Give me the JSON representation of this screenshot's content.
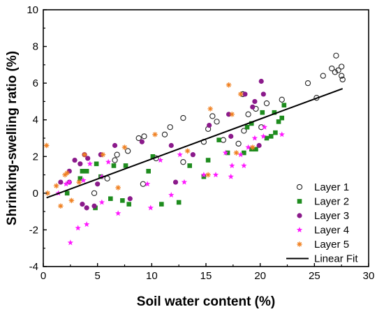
{
  "chart_data": {
    "type": "scatter",
    "xlabel": "Soil water content (%)",
    "ylabel": "Shrinking-swelling ratio (%)",
    "xlim": [
      0,
      30
    ],
    "ylim": [
      -4,
      10
    ],
    "xticks": [
      "0",
      "5",
      "10",
      "15",
      "20",
      "25",
      "30"
    ],
    "yticks": [
      "-4",
      "-2",
      "0",
      "2",
      "4",
      "6",
      "8",
      "10"
    ],
    "grid": false,
    "legend_position": "bottom-right",
    "series": [
      {
        "name": "Layer 1",
        "marker": "open-circle",
        "color": "#222222",
        "points": [
          [
            4.7,
            0.0
          ],
          [
            5.9,
            0.8
          ],
          [
            6.6,
            1.8
          ],
          [
            6.8,
            2.1
          ],
          [
            7.8,
            2.3
          ],
          [
            8.8,
            3.0
          ],
          [
            9.3,
            3.1
          ],
          [
            9.2,
            0.5
          ],
          [
            10.4,
            1.9
          ],
          [
            11.2,
            3.2
          ],
          [
            11.7,
            3.6
          ],
          [
            12.9,
            4.1
          ],
          [
            12.9,
            1.7
          ],
          [
            14.8,
            2.8
          ],
          [
            15.2,
            3.5
          ],
          [
            15.6,
            4.2
          ],
          [
            16.0,
            3.9
          ],
          [
            16.6,
            2.9
          ],
          [
            18.0,
            2.7
          ],
          [
            18.5,
            3.4
          ],
          [
            18.9,
            4.3
          ],
          [
            18.4,
            5.4
          ],
          [
            19.6,
            4.6
          ],
          [
            20.1,
            3.6
          ],
          [
            20.6,
            4.9
          ],
          [
            22.0,
            5.1
          ],
          [
            24.4,
            6.0
          ],
          [
            25.2,
            5.2
          ],
          [
            25.8,
            6.4
          ],
          [
            26.6,
            6.8
          ],
          [
            27.0,
            7.5
          ],
          [
            26.9,
            6.6
          ],
          [
            27.2,
            6.7
          ],
          [
            27.5,
            6.9
          ],
          [
            27.5,
            6.4
          ],
          [
            27.6,
            6.2
          ]
        ]
      },
      {
        "name": "Layer 2",
        "marker": "filled-square",
        "color": "#1e8c1e",
        "points": [
          [
            2.2,
            0.0
          ],
          [
            3.4,
            0.8
          ],
          [
            3.6,
            1.2
          ],
          [
            4.0,
            1.2
          ],
          [
            4.8,
            -0.8
          ],
          [
            4.9,
            1.6
          ],
          [
            5.3,
            0.9
          ],
          [
            6.2,
            -0.3
          ],
          [
            6.5,
            1.5
          ],
          [
            7.3,
            -0.4
          ],
          [
            7.6,
            1.5
          ],
          [
            7.9,
            -0.6
          ],
          [
            9.7,
            1.2
          ],
          [
            10.1,
            2.0
          ],
          [
            10.9,
            -0.6
          ],
          [
            12.5,
            -0.5
          ],
          [
            13.5,
            1.5
          ],
          [
            14.8,
            0.9
          ],
          [
            15.2,
            1.8
          ],
          [
            16.2,
            2.9
          ],
          [
            17.0,
            2.2
          ],
          [
            18.5,
            2.2
          ],
          [
            19.2,
            2.4
          ],
          [
            19.6,
            2.4
          ],
          [
            19.2,
            3.8
          ],
          [
            20.2,
            4.4
          ],
          [
            20.6,
            3.0
          ],
          [
            21.0,
            3.1
          ],
          [
            21.3,
            4.4
          ],
          [
            21.4,
            3.3
          ],
          [
            21.7,
            3.9
          ],
          [
            22.0,
            4.1
          ],
          [
            22.2,
            4.8
          ],
          [
            18.8,
            3.6
          ]
        ]
      },
      {
        "name": "Layer 3",
        "marker": "filled-circle",
        "color": "#8b1a8b",
        "points": [
          [
            1.6,
            0.6
          ],
          [
            2.4,
            0.6
          ],
          [
            2.4,
            1.2
          ],
          [
            2.9,
            1.8
          ],
          [
            3.4,
            1.6
          ],
          [
            3.6,
            -0.6
          ],
          [
            3.8,
            2.1
          ],
          [
            4.0,
            -0.8
          ],
          [
            4.1,
            1.9
          ],
          [
            4.7,
            -0.7
          ],
          [
            5.0,
            0.5
          ],
          [
            5.3,
            2.1
          ],
          [
            6.6,
            2.6
          ],
          [
            8.0,
            -0.3
          ],
          [
            9.1,
            2.8
          ],
          [
            11.8,
            2.6
          ],
          [
            12.2,
            0.6
          ],
          [
            13.8,
            2.1
          ],
          [
            17.1,
            4.3
          ],
          [
            17.3,
            3.1
          ],
          [
            18.6,
            5.4
          ],
          [
            19.3,
            4.7
          ],
          [
            19.5,
            5.0
          ],
          [
            19.9,
            2.6
          ],
          [
            20.1,
            6.1
          ],
          [
            20.3,
            5.4
          ],
          [
            15.3,
            3.7
          ]
        ]
      },
      {
        "name": "Layer 4",
        "marker": "star",
        "color": "#ff1aff",
        "points": [
          [
            1.4,
            0.0
          ],
          [
            2.1,
            0.5
          ],
          [
            2.4,
            0.6
          ],
          [
            2.5,
            -2.7
          ],
          [
            3.2,
            -1.9
          ],
          [
            3.7,
            0.7
          ],
          [
            4.0,
            -1.7
          ],
          [
            4.3,
            1.6
          ],
          [
            5.4,
            0.9
          ],
          [
            5.4,
            -0.5
          ],
          [
            6.0,
            1.7
          ],
          [
            6.9,
            -1.1
          ],
          [
            9.6,
            0.5
          ],
          [
            9.9,
            -0.8
          ],
          [
            10.8,
            1.8
          ],
          [
            11.8,
            -0.1
          ],
          [
            12.6,
            2.1
          ],
          [
            13.0,
            0.6
          ],
          [
            14.8,
            1.0
          ],
          [
            15.9,
            1.0
          ],
          [
            16.8,
            2.2
          ],
          [
            17.3,
            0.9
          ],
          [
            17.4,
            1.5
          ],
          [
            18.2,
            2.1
          ],
          [
            18.5,
            1.5
          ],
          [
            18.9,
            2.5
          ],
          [
            19.5,
            3.0
          ],
          [
            20.3,
            3.1
          ],
          [
            20.4,
            3.6
          ],
          [
            22.0,
            3.2
          ]
        ]
      },
      {
        "name": "Layer 5",
        "marker": "asterisk",
        "color": "#f08020",
        "points": [
          [
            0.3,
            2.6
          ],
          [
            0.4,
            0.0
          ],
          [
            1.2,
            0.4
          ],
          [
            1.6,
            -0.7
          ],
          [
            2.0,
            1.0
          ],
          [
            2.2,
            1.1
          ],
          [
            2.6,
            -0.4
          ],
          [
            3.3,
            0.6
          ],
          [
            3.8,
            2.1
          ],
          [
            5.5,
            2.1
          ],
          [
            6.9,
            0.3
          ],
          [
            7.5,
            2.5
          ],
          [
            10.3,
            3.2
          ],
          [
            13.3,
            2.3
          ],
          [
            15.2,
            1.0
          ],
          [
            15.4,
            4.6
          ],
          [
            17.1,
            5.9
          ],
          [
            17.4,
            4.3
          ],
          [
            17.8,
            2.2
          ],
          [
            18.2,
            5.4
          ],
          [
            19.3,
            2.5
          ]
        ]
      }
    ],
    "fit": {
      "name": "Linear Fit",
      "color": "#000000",
      "x": [
        0.3,
        27.6
      ],
      "y": [
        -0.25,
        5.7
      ]
    }
  }
}
